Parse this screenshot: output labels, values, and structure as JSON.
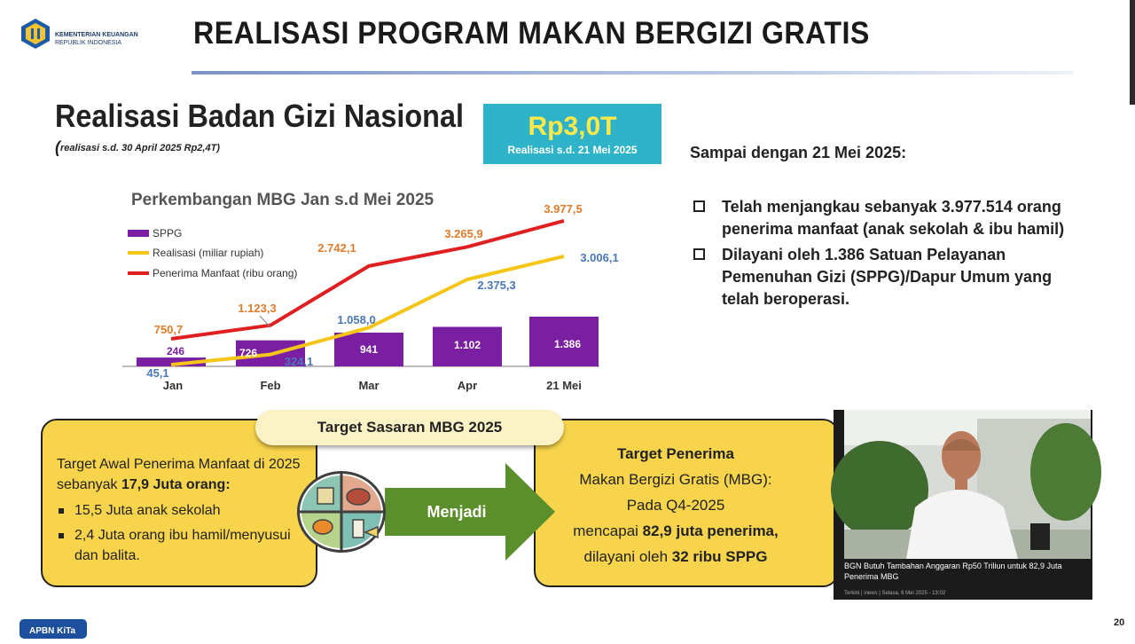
{
  "header": {
    "org_name": "KEMENTERIAN KEUANGAN",
    "org_sub": "REPUBLIK INDONESIA",
    "title": "REALISASI PROGRAM MAKAN BERGIZI GRATIS"
  },
  "section": {
    "title": "Realisasi Badan Gizi Nasional",
    "subtitle_open": "(",
    "subtitle": "realisasi s.d.  30 April 2025 Rp2,4T)"
  },
  "highlight": {
    "value": "Rp3,0T",
    "label": "Realisasi s.d. 21 Mei 2025"
  },
  "info": {
    "title": "Sampai dengan 21 Mei 2025:",
    "items": [
      "Telah menjangkau sebanyak 3.977.514 orang penerima manfaat (anak sekolah & ibu hamil)",
      "Dilayani oleh 1.386 Satuan Pelayanan Pemenuhan Gizi (SPPG)/Dapur Umum yang telah beroperasi."
    ]
  },
  "chart_data": {
    "type": "bar",
    "title": "Perkembangan MBG Jan s.d Mei 2025",
    "categories": [
      "Jan",
      "Feb",
      "Mar",
      "Apr",
      "21 Mei"
    ],
    "legend_position": "top-left",
    "grid": false,
    "series": [
      {
        "name": "SPPG",
        "type": "bar",
        "color": "#7a1fa2",
        "values": [
          246,
          726,
          941,
          1102,
          1386
        ],
        "labels": [
          "246",
          "726",
          "941",
          "1.102",
          "1.386"
        ]
      },
      {
        "name": "Realisasi (miliar rupiah)",
        "type": "line",
        "color": "#f5c518",
        "values": [
          45.1,
          324.1,
          1058.0,
          2375.3,
          3006.1
        ],
        "labels": [
          "45,1",
          "324,1",
          "1.058,0",
          "2.375,3",
          "3.006,1"
        ]
      },
      {
        "name": "Penerima Manfaat (ribu orang)",
        "type": "line",
        "color": "#e02020",
        "values": [
          750.7,
          1123.3,
          2742.1,
          3265.9,
          3977.5
        ],
        "labels": [
          "750,7",
          "1.123,3",
          "2.742,1",
          "3.265,9",
          "3.977,5"
        ]
      }
    ]
  },
  "target": {
    "pill": "Target Sasaran MBG 2025",
    "left_text_a": "Target Awal Penerima Manfaat di 2025 sebanyak ",
    "left_text_b": "17,9 Juta orang:",
    "left_items": [
      "15,5 Juta anak sekolah",
      "2,4 Juta orang ibu hamil/menyusui dan balita."
    ],
    "arrow_label": "Menjadi",
    "right_title": "Target Penerima",
    "right_line1": "Makan Bergizi Gratis (MBG):",
    "right_line2": "Pada Q4-2025",
    "right_line3a": "mencapai ",
    "right_line3b": "82,9 juta penerima,",
    "right_line4a": "dilayani oleh ",
    "right_line4b": "32 ribu SPPG"
  },
  "video": {
    "caption": "BGN Butuh Tambahan Anggaran Rp50 Triliun untuk 82,9 Juta Penerima MBG",
    "source": "Terkini | inews | Selasa, 6 Mei 2025 - 13:02"
  },
  "footer": {
    "badge": "APBN KiTa",
    "page": "20"
  },
  "colors": {
    "highlight_bg": "#2fb3c9",
    "highlight_value": "#ffe94a",
    "box_yellow": "#f7d44c",
    "arrow_green": "#5b8f2c",
    "badge_blue": "#1c4f9c"
  }
}
